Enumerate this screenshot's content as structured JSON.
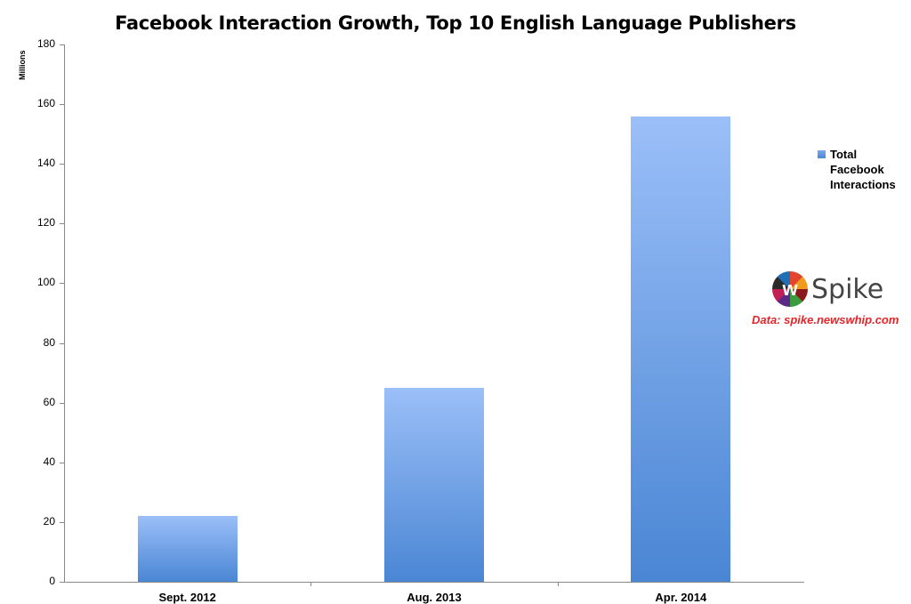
{
  "chart_data": {
    "type": "bar",
    "title": "Facebook Interaction Growth, Top 10 English Language Publishers",
    "xlabel": "",
    "ylabel": "Millions",
    "categories": [
      "Sept. 2012",
      "Aug. 2013",
      "Apr. 2014"
    ],
    "series": [
      {
        "name": "Total Facebook Interactions",
        "values": [
          22,
          65,
          156
        ]
      }
    ],
    "ylim": [
      0,
      180
    ],
    "yticks": [
      0,
      20,
      40,
      60,
      80,
      100,
      120,
      140,
      160,
      180
    ],
    "grid": false,
    "legend_position": "right"
  },
  "legend": {
    "label": "Total Facebook Interactions"
  },
  "branding": {
    "logo_letter": "w",
    "logo_name": "Spike",
    "source": "Data: spike.newswhip.com"
  },
  "colors": {
    "bar_top": "#9bbff8",
    "bar_bottom": "#4a86d4",
    "source_text": "#e3262a"
  }
}
